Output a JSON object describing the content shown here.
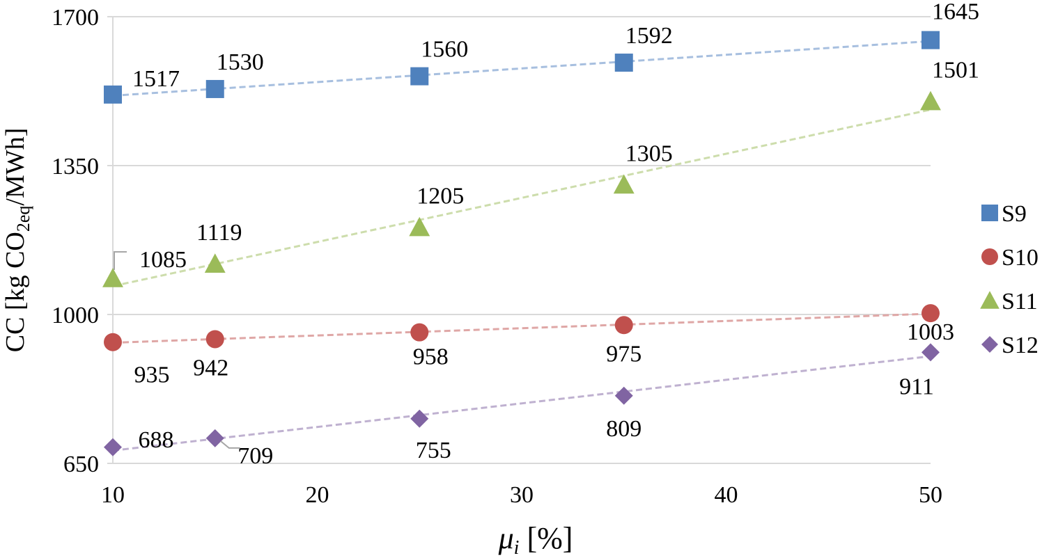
{
  "chart_data": {
    "type": "scatter",
    "xlabel": {
      "symbol": "μ",
      "sub": "i",
      "rest": " [%]"
    },
    "ylabel": {
      "pre": "CC [kg CO",
      "sub": "2eq",
      "post": "/MWh]"
    },
    "xlim": [
      10,
      50
    ],
    "ylim": [
      650,
      1700
    ],
    "xticks": [
      "10",
      "20",
      "30",
      "40",
      "50"
    ],
    "yticks": [
      "650",
      "1000",
      "1350",
      "1700"
    ],
    "grid": "horizontal",
    "legend_position": "right",
    "trendlines": "linear dashed",
    "series": [
      {
        "name": "S9",
        "marker": "square",
        "color": "#4f81bd",
        "trend_color": "#a7bfdf",
        "points": [
          {
            "x": 10,
            "y": 1517
          },
          {
            "x": 15,
            "y": 1530
          },
          {
            "x": 25,
            "y": 1560
          },
          {
            "x": 35,
            "y": 1592
          },
          {
            "x": 50,
            "y": 1645
          }
        ],
        "labels": [
          "1517",
          "1530",
          "1560",
          "1592",
          "1645"
        ]
      },
      {
        "name": "S10",
        "marker": "circle",
        "color": "#c0504d",
        "trend_color": "#dfa7a6",
        "points": [
          {
            "x": 10,
            "y": 935
          },
          {
            "x": 15,
            "y": 942
          },
          {
            "x": 25,
            "y": 958
          },
          {
            "x": 35,
            "y": 975
          },
          {
            "x": 50,
            "y": 1003
          }
        ],
        "labels": [
          "935",
          "942",
          "958",
          "975",
          "1003"
        ]
      },
      {
        "name": "S11",
        "marker": "triangle",
        "color": "#9bbb59",
        "trend_color": "#cdddac",
        "points": [
          {
            "x": 10,
            "y": 1085
          },
          {
            "x": 15,
            "y": 1119
          },
          {
            "x": 25,
            "y": 1205
          },
          {
            "x": 35,
            "y": 1305
          },
          {
            "x": 50,
            "y": 1501
          }
        ],
        "labels": [
          "1085",
          "1119",
          "1205",
          "1305",
          "1501"
        ]
      },
      {
        "name": "S12",
        "marker": "diamond",
        "color": "#8064a2",
        "trend_color": "#bfb1d0",
        "points": [
          {
            "x": 10,
            "y": 688
          },
          {
            "x": 15,
            "y": 709
          },
          {
            "x": 25,
            "y": 755
          },
          {
            "x": 35,
            "y": 809
          },
          {
            "x": 50,
            "y": 911
          }
        ],
        "labels": [
          "688",
          "709",
          "755",
          "809",
          "911"
        ]
      }
    ]
  }
}
